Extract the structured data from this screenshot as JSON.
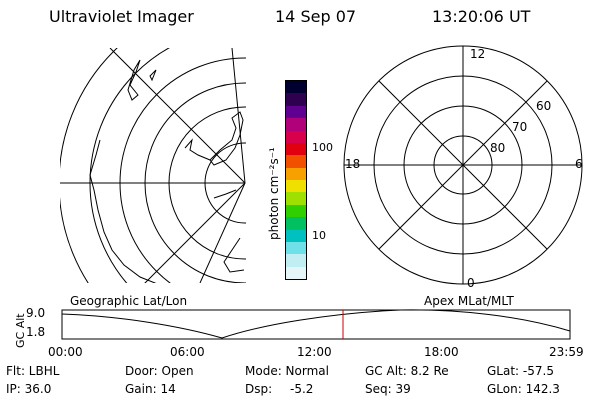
{
  "header": {
    "title": "Ultraviolet Imager",
    "date": "14 Sep 07",
    "time": "13:20:06 UT"
  },
  "colorbar": {
    "unit_label": "photon cm⁻²s⁻¹",
    "ticks": [
      "100",
      "10"
    ],
    "colors": [
      "#000030",
      "#300050",
      "#600090",
      "#b0007a",
      "#d8004a",
      "#e00010",
      "#f05000",
      "#f8a000",
      "#f0e000",
      "#a0e000",
      "#30d000",
      "#00c060",
      "#00c0c0",
      "#70e0e8",
      "#c0eef2",
      "#e6f6f8"
    ]
  },
  "left_panel": {
    "label": "Geographic Lat/Lon"
  },
  "right_panel": {
    "label": "Apex MLat/MLT",
    "mlt_labels": {
      "top": "12",
      "right": "6",
      "bottom": "0",
      "left": "18"
    },
    "mlat_labels": [
      "60",
      "70",
      "80"
    ]
  },
  "altitude_plot": {
    "ylabel": "GC Alt",
    "yticks": [
      "9.0",
      "1.8"
    ],
    "xticks": [
      "00:00",
      "06:00",
      "12:00",
      "18:00",
      "23:59"
    ],
    "marker_color": "#cc0000"
  },
  "info": {
    "filter": "Flt: LBHL",
    "ip": "IP: 36.0",
    "door": "Door: Open",
    "gain": "Gain: 14",
    "mode": "Mode: Normal",
    "dsp_label": "Dsp:",
    "dsp_value": "-5.2",
    "gc_alt": "GC Alt: 8.2 Re",
    "seq": "Seq: 39",
    "glat": "GLat: -57.5",
    "glon": "GLon: 142.3"
  }
}
